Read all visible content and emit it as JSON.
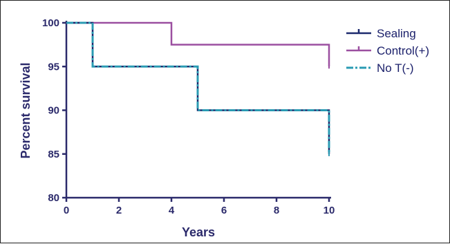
{
  "chart_data": {
    "type": "line",
    "subtype": "kaplan-meier-step",
    "title": "",
    "xlabel": "Years",
    "ylabel": "Percent survival",
    "xlim": [
      0,
      10
    ],
    "ylim": [
      80,
      100
    ],
    "xticks": [
      "0",
      "2",
      "4",
      "6",
      "8",
      "10"
    ],
    "yticks": [
      "80",
      "85",
      "90",
      "95",
      "100"
    ],
    "grid": false,
    "legend_position": "right",
    "series": [
      {
        "name": "Sealing",
        "color": "#1c2a6e",
        "style": "solid",
        "x": [
          0,
          1,
          1,
          5,
          5,
          10,
          10
        ],
        "y": [
          100,
          100,
          95,
          95,
          90,
          90,
          85
        ]
      },
      {
        "name": "Control(+)",
        "color": "#9b4fa0",
        "style": "solid",
        "x": [
          0,
          4,
          4,
          10,
          10
        ],
        "y": [
          100,
          100,
          97.5,
          97.5,
          95
        ]
      },
      {
        "name": "No T(-)",
        "color": "#2a9bb3",
        "style": "dash-dot",
        "x": [
          0,
          1,
          1,
          5,
          5,
          10,
          10
        ],
        "y": [
          100,
          100,
          95,
          95,
          90,
          90,
          85
        ]
      }
    ]
  }
}
